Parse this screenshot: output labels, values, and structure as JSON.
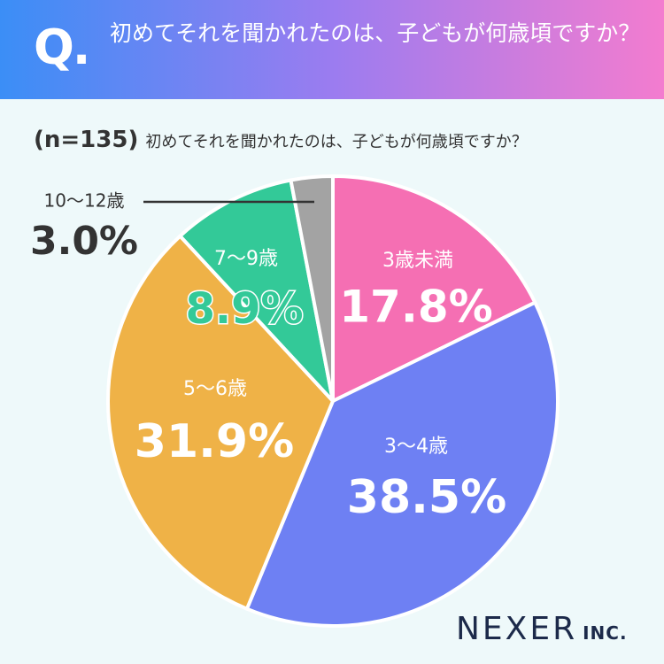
{
  "chart_data": {
    "type": "pie",
    "title": "初めてそれを聞かれたのは、子どもが何歳頃ですか？",
    "title_marker": "Q.",
    "sample": "(n=135)",
    "subtitle": "初めてそれを聞かれたのは、子どもが何歳頃ですか？",
    "categories": [
      "3歳未満",
      "3〜4歳",
      "5〜6歳",
      "7〜9歳",
      "10〜12歳"
    ],
    "values": [
      17.8,
      38.5,
      31.9,
      8.9,
      3.0
    ],
    "value_labels": [
      "17.8%",
      "38.5%",
      "31.9%",
      "8.9%",
      "3.0%"
    ],
    "colors": [
      "#f56fb3",
      "#6e80f3",
      "#efb247",
      "#33c998",
      "#a3a3a3"
    ],
    "logo": "NEXER",
    "logo_suffix": "INC."
  }
}
